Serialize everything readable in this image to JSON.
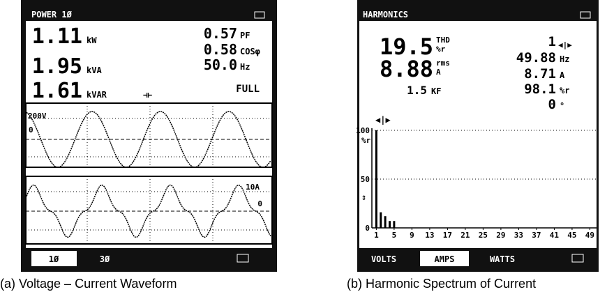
{
  "left": {
    "header": "POWER 1Ø",
    "readings": [
      {
        "value": "1.11",
        "unit": "kW"
      },
      {
        "value": "1.95",
        "unit": "kVA"
      },
      {
        "value": "1.61",
        "unit": "kVAR"
      }
    ],
    "side_readings": [
      {
        "value": "0.57",
        "unit": "PF"
      },
      {
        "value": "0.58",
        "unit": "COSφ"
      },
      {
        "value": "50.0",
        "unit": "Hz"
      }
    ],
    "status": "FULL",
    "voltage_scale": "200V",
    "voltage_zero": "0",
    "current_scale": "10A",
    "current_zero": "0",
    "tabs": [
      "1Ø",
      "3Ø"
    ],
    "caption": "(a) Voltage – Current Waveform"
  },
  "right": {
    "header": "HARMONICS",
    "thd": {
      "value": "19.5",
      "unit1": "THD",
      "unit2": "%r"
    },
    "rms": {
      "value": "8.88",
      "unit1": "rms",
      "unit2": "A"
    },
    "kf": {
      "value": "1.5",
      "unit": "KF"
    },
    "side_readings": [
      {
        "value": "1",
        "unit": ""
      },
      {
        "value": "49.88",
        "unit": "Hz"
      },
      {
        "value": "8.71",
        "unit": "A"
      },
      {
        "value": "98.1",
        "unit": "%r"
      },
      {
        "value": "0",
        "unit": "°"
      }
    ],
    "spectrum": {
      "ylim": [
        0,
        100
      ],
      "yticks": [
        0,
        50,
        100
      ],
      "yunit": "%r",
      "xlim": [
        0,
        50.5
      ],
      "xticks": [
        1,
        5,
        9,
        13,
        17,
        21,
        25,
        29,
        33,
        37,
        41,
        45,
        49
      ],
      "harmonics": [
        1,
        2,
        3,
        4,
        5
      ],
      "values": [
        100,
        16,
        12,
        7,
        7
      ]
    },
    "tabs": [
      "VOLTS",
      "AMPS",
      "WATTS"
    ],
    "caption": "(b) Harmonic Spectrum of Current"
  }
}
